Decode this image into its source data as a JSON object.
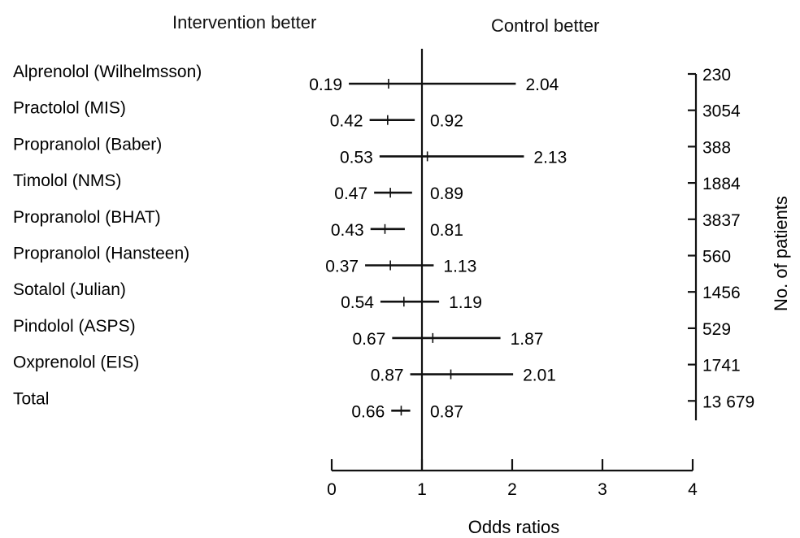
{
  "chart_data": {
    "type": "forest",
    "header_left": "Intervention better",
    "header_right": "Control better",
    "xlabel": "Odds ratios",
    "right_axis_label": "No. of patients",
    "xlim": [
      0,
      4
    ],
    "xticks": [
      "0",
      "1",
      "2",
      "3",
      "4"
    ],
    "reference_line": 1,
    "studies": [
      {
        "label": "Alprenolol (Wilhelmsson)",
        "lower": 0.19,
        "upper": 2.04,
        "lower_text": "0.19",
        "upper_text": "2.04",
        "estimate": 0.63,
        "patients": "230"
      },
      {
        "label": "Practolol (MIS)",
        "lower": 0.42,
        "upper": 0.92,
        "lower_text": "0.42",
        "upper_text": "0.92",
        "estimate": 0.62,
        "patients": "3054"
      },
      {
        "label": "Propranolol (Baber)",
        "lower": 0.53,
        "upper": 2.13,
        "lower_text": "0.53",
        "upper_text": "2.13",
        "estimate": 1.06,
        "patients": "388"
      },
      {
        "label": "Timolol (NMS)",
        "lower": 0.47,
        "upper": 0.89,
        "lower_text": "0.47",
        "upper_text": "0.89",
        "estimate": 0.65,
        "patients": "1884"
      },
      {
        "label": "Propranolol (BHAT)",
        "lower": 0.43,
        "upper": 0.81,
        "lower_text": "0.43",
        "upper_text": "0.81",
        "estimate": 0.59,
        "patients": "3837"
      },
      {
        "label": "Propranolol (Hansteen)",
        "lower": 0.37,
        "upper": 1.13,
        "lower_text": "0.37",
        "upper_text": "1.13",
        "estimate": 0.65,
        "patients": "560"
      },
      {
        "label": "Sotalol (Julian)",
        "lower": 0.54,
        "upper": 1.19,
        "lower_text": "0.54",
        "upper_text": "1.19",
        "estimate": 0.8,
        "patients": "1456"
      },
      {
        "label": "Pindolol (ASPS)",
        "lower": 0.67,
        "upper": 1.87,
        "lower_text": "0.67",
        "upper_text": "1.87",
        "estimate": 1.12,
        "patients": "529"
      },
      {
        "label": "Oxprenolol (EIS)",
        "lower": 0.87,
        "upper": 2.01,
        "lower_text": "0.87",
        "upper_text": "2.01",
        "estimate": 1.32,
        "patients": "1741"
      },
      {
        "label": "Total",
        "lower": 0.66,
        "upper": 0.87,
        "lower_text": "0.66",
        "upper_text": "0.87",
        "estimate": 0.77,
        "patients": "13 679"
      }
    ]
  }
}
